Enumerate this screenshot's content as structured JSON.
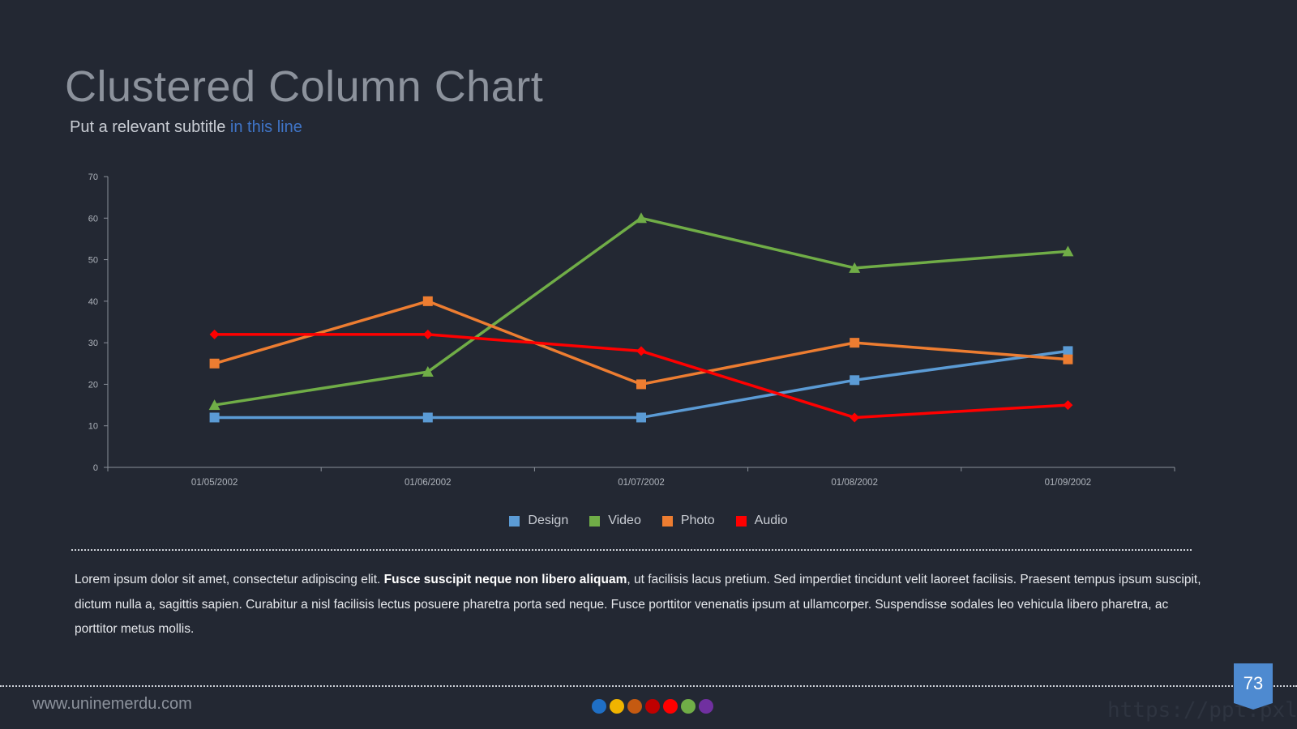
{
  "title": "Clustered Column Chart",
  "subtitle": {
    "lead": "Put a relevant subtitle",
    "accent": "in this line"
  },
  "colors": {
    "accent": "#3f74c6",
    "background": "#232833"
  },
  "chart_data": {
    "type": "line",
    "x": [
      "01/05/2002",
      "01/06/2002",
      "01/07/2002",
      "01/08/2002",
      "01/09/2002"
    ],
    "ylim": [
      0,
      70
    ],
    "yticks": [
      0,
      10,
      20,
      30,
      40,
      50,
      60,
      70
    ],
    "series": [
      {
        "name": "Design",
        "values": [
          12,
          12,
          12,
          21,
          28
        ],
        "color": "#5b9bd5",
        "marker": "square"
      },
      {
        "name": "Video",
        "values": [
          15,
          23,
          60,
          48,
          52
        ],
        "color": "#70ad47",
        "marker": "triangle"
      },
      {
        "name": "Photo",
        "values": [
          25,
          40,
          20,
          30,
          26
        ],
        "color": "#ed7d31",
        "marker": "square"
      },
      {
        "name": "Audio",
        "values": [
          32,
          32,
          28,
          12,
          15
        ],
        "color": "#ff0000",
        "marker": "diamond"
      }
    ],
    "legend": "bottom",
    "grid": false
  },
  "body": {
    "text_start": "Lorem ipsum dolor sit amet, consectetur adipiscing elit. ",
    "text_bold": "Fusce suscipit neque non libero aliquam",
    "text_end": ", ut facilisis lacus pretium. Sed imperdiet tincidunt velit laoreet facilisis. Praesent tempus ipsum suscipit, dictum nulla a, sagittis sapien. Curabitur a nisl facilisis lectus posuere pharetra porta sed neque. Fusce porttitor venenatis ipsum at ullamcorper. Suspendisse sodales leo vehicula libero pharetra, ac porttitor metus mollis."
  },
  "footer": {
    "url": "www.uninemerdu.com",
    "page_number": "73",
    "watermark": "https://ppt.pxll.de",
    "dot_colors": [
      "#1f6fc5",
      "#f0b400",
      "#c55a11",
      "#c00000",
      "#ff0000",
      "#70ad47",
      "#7030a0"
    ]
  }
}
